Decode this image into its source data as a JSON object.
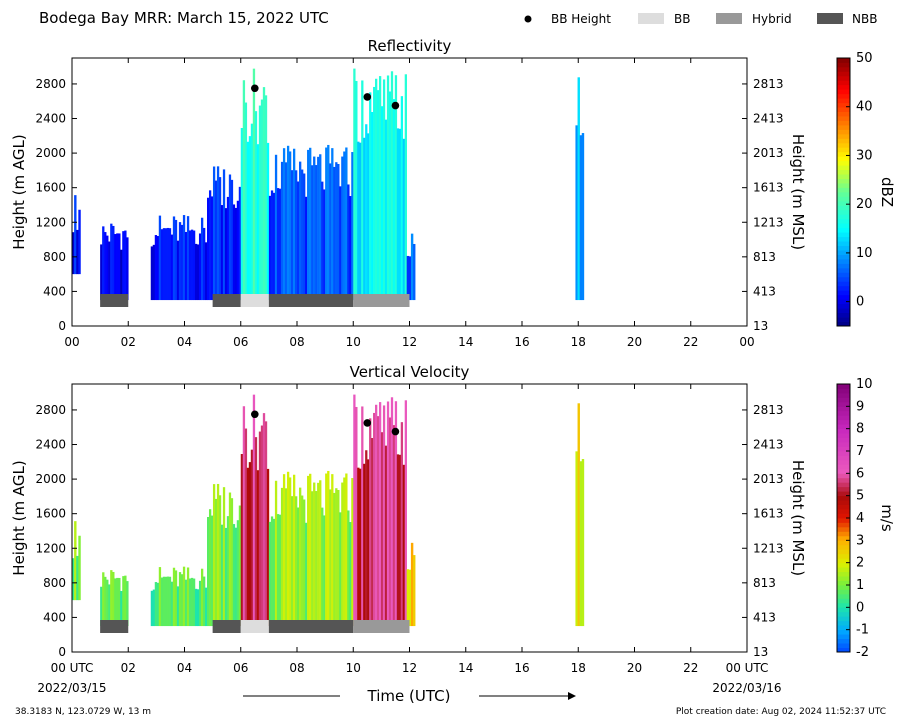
{
  "figure": {
    "title": "Bodega Bay MRR:  March 15, 2022 UTC",
    "xlabel": "Time (UTC)",
    "start_date": "2022/03/15",
    "end_date": "2022/03/16",
    "location": "38.3183 N, 123.0729 W, 13 m",
    "creation": "Plot creation date: Aug 02, 2024 11:52:37 UTC"
  },
  "legend": [
    {
      "label": "BB Height",
      "kind": "dot",
      "color": "#000000"
    },
    {
      "label": "BB",
      "kind": "box",
      "color": "#dddddd"
    },
    {
      "label": "Hybrid",
      "kind": "box",
      "color": "#999999"
    },
    {
      "label": "NBB",
      "kind": "box",
      "color": "#555555"
    }
  ],
  "chart_data": [
    {
      "type": "heatmap",
      "title": "Reflectivity",
      "ylabel": "Height (m AGL)",
      "ylabel_right": "Height (m MSL)",
      "xlim": [
        0,
        24
      ],
      "ylim": [
        0,
        3100
      ],
      "x_ticks": [
        "00",
        "02",
        "04",
        "06",
        "08",
        "10",
        "12",
        "14",
        "16",
        "18",
        "20",
        "22",
        "00"
      ],
      "y_ticks": [
        0,
        400,
        800,
        1200,
        1600,
        2000,
        2400,
        2800
      ],
      "y_ticks_right": [
        13,
        413,
        813,
        1213,
        1613,
        2013,
        2413,
        2813
      ],
      "colorbar": {
        "label": "dBZ",
        "min": -5,
        "max": 50,
        "ticks": [
          0,
          10,
          20,
          30,
          40,
          50
        ]
      },
      "bb_height": [
        {
          "x": 6.5,
          "y": 2750
        },
        {
          "x": 10.5,
          "y": 2650
        },
        {
          "x": 11.5,
          "y": 2550
        }
      ],
      "classification": [
        {
          "x0": 1.0,
          "x1": 2.0,
          "class": "NBB"
        },
        {
          "x0": 5.0,
          "x1": 6.0,
          "class": "NBB"
        },
        {
          "x0": 6.0,
          "x1": 7.0,
          "class": "BB"
        },
        {
          "x0": 7.0,
          "x1": 10.0,
          "class": "NBB"
        },
        {
          "x0": 10.0,
          "x1": 12.0,
          "class": "Hybrid"
        }
      ],
      "echo_periods": [
        {
          "x0": 0.0,
          "x1": 0.3,
          "y0": 600,
          "y1": 1550,
          "value": 2
        },
        {
          "x0": 1.0,
          "x1": 2.0,
          "y0": 300,
          "y1": 1250,
          "value": 1
        },
        {
          "x0": 2.8,
          "x1": 4.8,
          "y0": 300,
          "y1": 1300,
          "value": 2
        },
        {
          "x0": 4.8,
          "x1": 6.0,
          "y0": 300,
          "y1": 1900,
          "value": 3
        },
        {
          "x0": 6.0,
          "x1": 7.0,
          "y0": 300,
          "y1": 3000,
          "value": 18
        },
        {
          "x0": 7.0,
          "x1": 10.0,
          "y0": 300,
          "y1": 2100,
          "value": 5
        },
        {
          "x0": 10.0,
          "x1": 11.9,
          "y0": 300,
          "y1": 3000,
          "value": 15
        },
        {
          "x0": 11.9,
          "x1": 12.2,
          "y0": 300,
          "y1": 1100,
          "value": 6
        },
        {
          "x0": 17.9,
          "x1": 18.2,
          "y0": 300,
          "y1": 2900,
          "value": 10
        }
      ]
    },
    {
      "type": "heatmap",
      "title": "Vertical Velocity",
      "ylabel": "Height (m AGL)",
      "ylabel_right": "Height (m MSL)",
      "xlim": [
        0,
        24
      ],
      "ylim": [
        0,
        3100
      ],
      "x_ticks": [
        "00 UTC",
        "02",
        "04",
        "06",
        "08",
        "10",
        "12",
        "14",
        "16",
        "18",
        "20",
        "22",
        "00 UTC"
      ],
      "y_ticks": [
        0,
        400,
        800,
        1200,
        1600,
        2000,
        2400,
        2800
      ],
      "y_ticks_right": [
        13,
        413,
        813,
        1213,
        1613,
        2013,
        2413,
        2813
      ],
      "colorbar": {
        "label": "m/s",
        "min": -2,
        "max": 10,
        "ticks": [
          -2,
          -1,
          0,
          1,
          2,
          3,
          4,
          5,
          6,
          7,
          8,
          9,
          10
        ]
      },
      "bb_height": [
        {
          "x": 6.5,
          "y": 2750
        },
        {
          "x": 10.5,
          "y": 2650
        },
        {
          "x": 11.5,
          "y": 2550
        }
      ],
      "classification": [
        {
          "x0": 1.0,
          "x1": 2.0,
          "class": "NBB"
        },
        {
          "x0": 5.0,
          "x1": 6.0,
          "class": "NBB"
        },
        {
          "x0": 6.0,
          "x1": 7.0,
          "class": "BB"
        },
        {
          "x0": 7.0,
          "x1": 10.0,
          "class": "NBB"
        },
        {
          "x0": 10.0,
          "x1": 12.0,
          "class": "Hybrid"
        }
      ],
      "echo_periods": [
        {
          "x0": 0.0,
          "x1": 0.3,
          "y0": 600,
          "y1": 1550,
          "value": 1
        },
        {
          "x0": 1.0,
          "x1": 2.0,
          "y0": 300,
          "y1": 1000,
          "value": 0.8
        },
        {
          "x0": 2.8,
          "x1": 4.8,
          "y0": 300,
          "y1": 1000,
          "value": 0.6
        },
        {
          "x0": 4.8,
          "x1": 6.0,
          "y0": 300,
          "y1": 2000,
          "value": 1
        },
        {
          "x0": 6.0,
          "x1": 7.0,
          "y0": 300,
          "y1": 3000,
          "value": 5.5
        },
        {
          "x0": 7.0,
          "x1": 10.0,
          "y0": 300,
          "y1": 2100,
          "value": 1.2
        },
        {
          "x0": 10.0,
          "x1": 11.9,
          "y0": 300,
          "y1": 3000,
          "value": 5.5
        },
        {
          "x0": 11.9,
          "x1": 12.2,
          "y0": 300,
          "y1": 1300,
          "value": 2.5
        },
        {
          "x0": 17.9,
          "x1": 18.2,
          "y0": 300,
          "y1": 2900,
          "value": 2
        }
      ]
    }
  ]
}
